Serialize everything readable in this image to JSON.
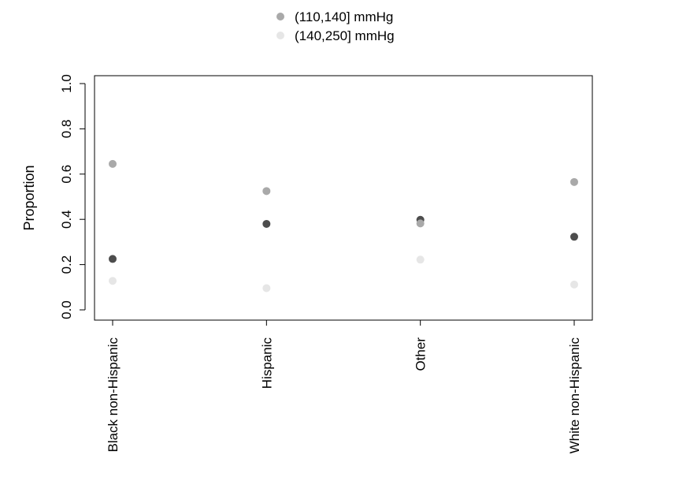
{
  "chart_data": {
    "type": "scatter",
    "categories": [
      "Black non-Hispanic",
      "Hispanic",
      "Other",
      "White non-Hispanic"
    ],
    "series": [
      {
        "values": [
          0.225,
          0.38,
          0.398,
          0.323
        ],
        "color": "#4d4d4d"
      },
      {
        "name": "(110,140] mmHg",
        "values": [
          0.645,
          0.525,
          0.382,
          0.565
        ],
        "color": "#a9a9a9"
      },
      {
        "name": "(140,250] mmHg",
        "values": [
          0.128,
          0.096,
          0.222,
          0.112
        ],
        "color": "#e6e6e6"
      }
    ],
    "title": "",
    "xlabel": "",
    "ylabel": "Proportion",
    "ylim": [
      0,
      1
    ],
    "yticks": [
      "0.0",
      "0.2",
      "0.4",
      "0.6",
      "0.8",
      "1.0"
    ],
    "legend_position": "top-center",
    "grid": false
  }
}
